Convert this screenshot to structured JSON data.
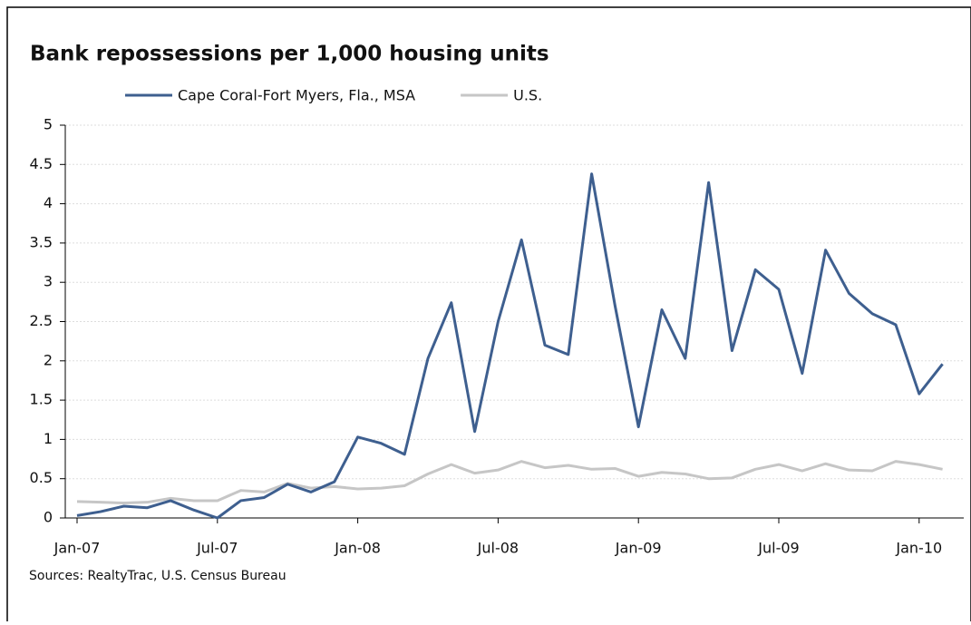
{
  "chart_data": {
    "type": "line",
    "title": "Bank repossessions per 1,000 housing units",
    "source": "Sources: RealtyTrac, U.S. Census Bureau",
    "categories": [
      "Jan-07",
      null,
      null,
      null,
      null,
      null,
      "Jul-07",
      null,
      null,
      null,
      null,
      null,
      "Jan-08",
      null,
      null,
      null,
      null,
      null,
      "Jul-08",
      null,
      null,
      null,
      null,
      null,
      "Jan-09",
      null,
      null,
      null,
      null,
      null,
      "Jul-09",
      null,
      null,
      null,
      null,
      null,
      "Jan-10",
      null
    ],
    "series": [
      {
        "name": "Cape Coral-Fort Myers, Fla., MSA",
        "color": "#3e5f8f",
        "values": [
          0.03,
          0.08,
          0.15,
          0.13,
          0.22,
          0.1,
          0.0,
          0.22,
          0.26,
          0.43,
          0.33,
          0.46,
          1.03,
          0.95,
          0.81,
          2.03,
          2.74,
          1.1,
          2.5,
          3.54,
          2.2,
          2.08,
          4.38,
          2.7,
          1.16,
          2.65,
          2.03,
          4.27,
          2.13,
          3.16,
          2.91,
          1.84,
          3.41,
          2.86,
          2.6,
          2.46,
          1.58,
          1.96
        ]
      },
      {
        "name": "U.S.",
        "color": "#c6c6c6",
        "values": [
          0.21,
          0.2,
          0.19,
          0.2,
          0.25,
          0.22,
          0.22,
          0.35,
          0.33,
          0.44,
          0.38,
          0.4,
          0.37,
          0.38,
          0.41,
          0.56,
          0.68,
          0.57,
          0.61,
          0.72,
          0.64,
          0.67,
          0.62,
          0.63,
          0.53,
          0.58,
          0.56,
          0.5,
          0.51,
          0.62,
          0.68,
          0.6,
          0.69,
          0.61,
          0.6,
          0.72,
          0.68,
          0.62
        ]
      }
    ],
    "ylim": [
      0,
      5
    ],
    "yticks": [
      0,
      0.5,
      1,
      1.5,
      2,
      2.5,
      3,
      3.5,
      4,
      4.5,
      5
    ],
    "grid": true
  }
}
